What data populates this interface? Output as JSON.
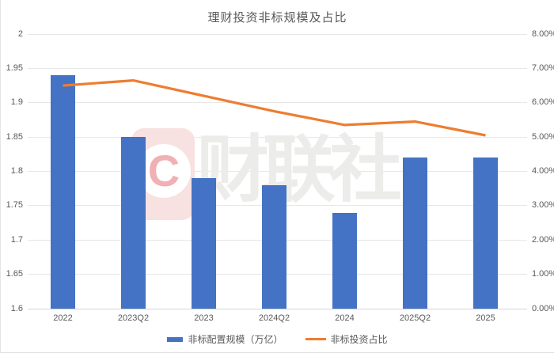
{
  "title": "理财投资非标规模及占比",
  "chart_data": {
    "type": "bar",
    "subtype": "bar-line-combo",
    "categories": [
      "2022",
      "2023Q2",
      "2023",
      "2024Q2",
      "2024",
      "2025Q2",
      "2025"
    ],
    "series": [
      {
        "name": "非标配置规模（万亿）",
        "type": "bar",
        "axis": "left",
        "color": "#4472C4",
        "values": [
          1.94,
          1.85,
          1.79,
          1.78,
          1.74,
          1.82,
          1.82
        ]
      },
      {
        "name": "非标投资占比",
        "type": "line",
        "axis": "right",
        "color": "#ED7D31",
        "values_percent": [
          6.5,
          6.65,
          6.2,
          5.75,
          5.35,
          5.45,
          5.05
        ]
      }
    ],
    "title": "理财投资非标规模及占比",
    "xlabel": "",
    "ylabel_left": "",
    "ylabel_right": "",
    "left_axis": {
      "min": 1.6,
      "max": 2.0,
      "step": 0.05,
      "tick_labels_top_to_bottom": [
        "2",
        "1.95",
        "1.9",
        "1.85",
        "1.8",
        "1.75",
        "1.7",
        "1.65",
        "1.6"
      ]
    },
    "right_axis": {
      "min": 0,
      "max": 8,
      "step": 1,
      "tick_labels_top_to_bottom": [
        "8.00%",
        "7.00%",
        "6.00%",
        "5.00%",
        "4.00%",
        "3.00%",
        "2.00%",
        "1.00%",
        "0.00%"
      ]
    },
    "grid": true,
    "legend_position": "bottom"
  },
  "watermark": {
    "letter": "C",
    "text": "财联社"
  },
  "colors": {
    "bar": "#4472C4",
    "line": "#ED7D31",
    "gridline": "#e7e7e7",
    "axis_text": "#595959",
    "watermark_pink": "#f8e1e1",
    "watermark_letter_pink": "#f0b0b4",
    "watermark_text_gray": "#ececea",
    "background": "#ffffff"
  }
}
